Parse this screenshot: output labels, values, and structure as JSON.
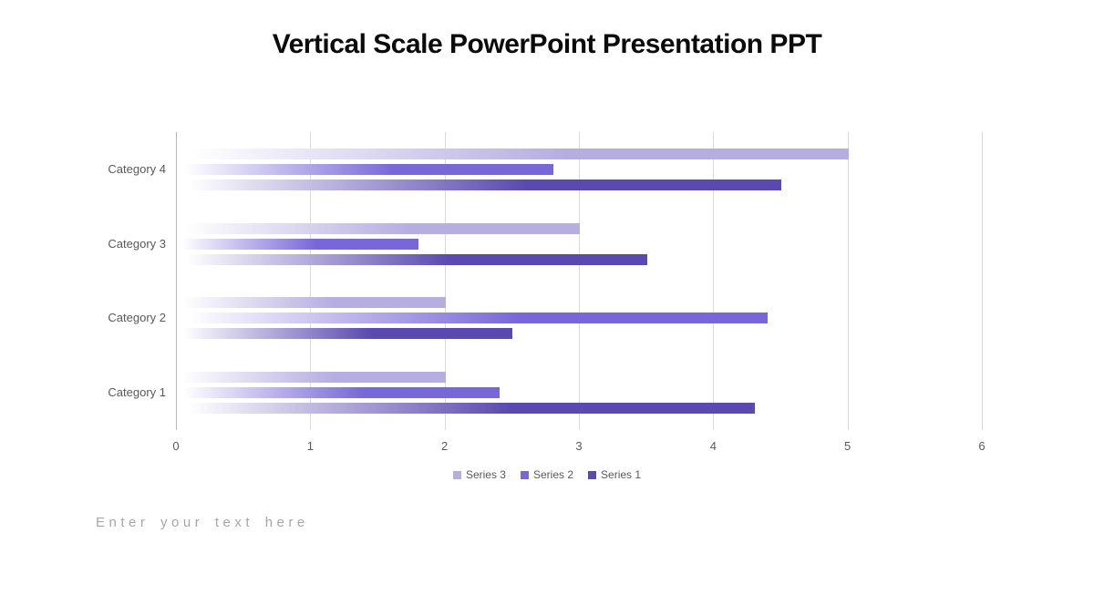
{
  "slide": {
    "title": "Vertical Scale PowerPoint Presentation PPT",
    "placeholder_text": "Enter your text here"
  },
  "chart_data": {
    "type": "bar",
    "orientation": "horizontal",
    "title": "",
    "xlabel": "",
    "ylabel": "",
    "categories_top_to_bottom": [
      "Category 4",
      "Category 3",
      "Category 2",
      "Category 1"
    ],
    "series_top_to_bottom_within_group": [
      {
        "name": "Series 3",
        "color": "#b6aee1",
        "values": [
          5.0,
          3.0,
          2.0,
          2.0
        ]
      },
      {
        "name": "Series 2",
        "color": "#7767d8",
        "values": [
          2.8,
          1.8,
          4.4,
          2.4
        ]
      },
      {
        "name": "Series 1",
        "color": "#5a49b0",
        "values": [
          4.5,
          3.5,
          2.5,
          4.3
        ]
      }
    ],
    "x_ticks": [
      "0",
      "1",
      "2",
      "3",
      "4",
      "5",
      "6"
    ],
    "xlim": [
      0,
      6
    ],
    "grid": true,
    "bar_fill_style": "gradient fading from white at value 0 to series color",
    "legend_order_left_to_right": [
      "Series 3",
      "Series 2",
      "Series 1"
    ],
    "legend_position": "bottom-center",
    "colors": {
      "gridline": "#d9d9d9",
      "axis_line": "#b7b7b7",
      "tick_text": "#595959",
      "category_text": "#595959",
      "legend_text": "#595959",
      "title_text": "#0b0b0b",
      "placeholder_text": "#a6a6a6",
      "background": "#ffffff"
    }
  }
}
